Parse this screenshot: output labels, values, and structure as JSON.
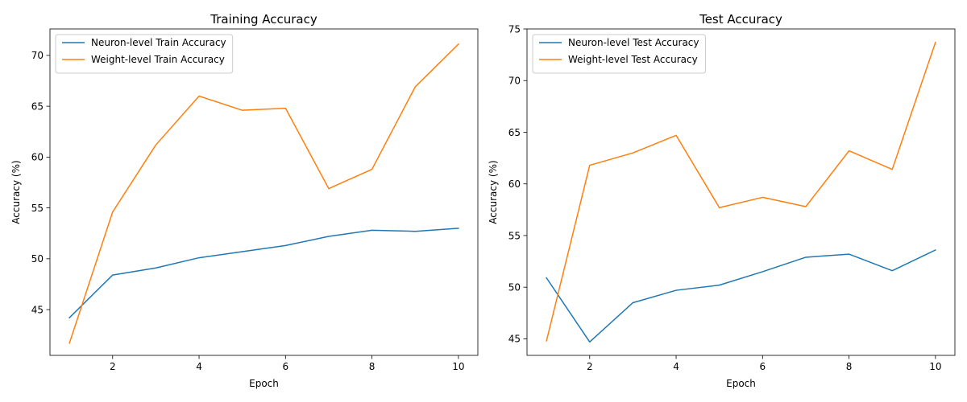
{
  "chart_data": [
    {
      "type": "line",
      "title": "Training Accuracy",
      "xlabel": "Epoch",
      "ylabel": "Accuracy (%)",
      "xlim": [
        0.55,
        10.45
      ],
      "ylim": [
        40.5,
        72.6
      ],
      "xticks": [
        2,
        4,
        6,
        8,
        10
      ],
      "yticks": [
        45,
        50,
        55,
        60,
        65,
        70
      ],
      "grid": false,
      "legend_position": "top-left",
      "x": [
        1,
        2,
        3,
        4,
        5,
        6,
        7,
        8,
        9,
        10
      ],
      "series": [
        {
          "name": "Neuron-level Train Accuracy",
          "color": "#1f77b4",
          "values": [
            44.2,
            48.4,
            49.1,
            50.1,
            50.7,
            51.3,
            52.2,
            52.8,
            52.7,
            53.0
          ]
        },
        {
          "name": "Weight-level Train Accuracy",
          "color": "#ff7f0e",
          "values": [
            41.7,
            54.6,
            61.2,
            66.0,
            64.6,
            64.8,
            56.9,
            58.8,
            66.9,
            71.1
          ]
        }
      ]
    },
    {
      "type": "line",
      "title": "Test Accuracy",
      "xlabel": "Epoch",
      "ylabel": "Accuracy (%)",
      "xlim": [
        0.55,
        10.45
      ],
      "ylim": [
        43.4,
        75.0
      ],
      "xticks": [
        2,
        4,
        6,
        8,
        10
      ],
      "yticks": [
        45,
        50,
        55,
        60,
        65,
        70,
        75
      ],
      "grid": false,
      "legend_position": "top-left",
      "x": [
        1,
        2,
        3,
        4,
        5,
        6,
        7,
        8,
        9,
        10
      ],
      "series": [
        {
          "name": "Neuron-level Test Accuracy",
          "color": "#1f77b4",
          "values": [
            50.9,
            44.7,
            48.5,
            49.7,
            50.2,
            51.5,
            52.9,
            53.2,
            51.6,
            53.6
          ]
        },
        {
          "name": "Weight-level Test Accuracy",
          "color": "#ff7f0e",
          "values": [
            44.8,
            61.8,
            63.0,
            64.7,
            57.7,
            58.7,
            57.8,
            63.2,
            61.4,
            73.7
          ]
        }
      ]
    }
  ]
}
